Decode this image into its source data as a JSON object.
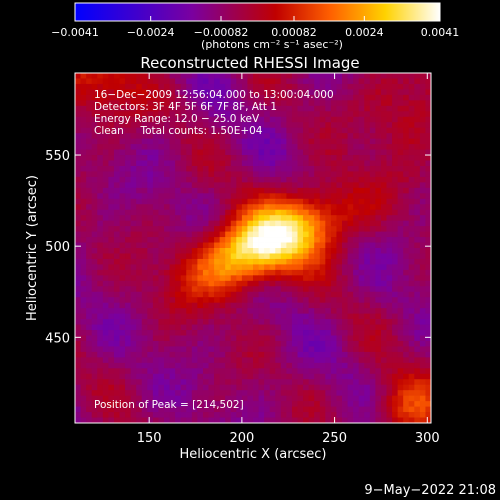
{
  "chart_data": {
    "type": "heatmap",
    "title": "Reconstructed RHESSI Image",
    "colorbar": {
      "min": -0.0041,
      "max": 0.0041,
      "tick_values": [
        -0.0041,
        -0.0024,
        -0.00082,
        0.00082,
        0.0024,
        0.0041
      ],
      "tick_labels": [
        "−0.0041",
        "−0.0024",
        "−0.00082",
        "0.00082",
        "0.0024",
        "0.0041"
      ],
      "unit_label": "(photons cm⁻² s⁻¹ asec⁻²)",
      "colors": [
        "#0000ff",
        "#7a00a0",
        "#c00000",
        "#ff6000",
        "#ffd200",
        "#ffffff"
      ]
    },
    "xlabel": "Heliocentric X (arcsec)",
    "ylabel": "Heliocentric Y (arcsec)",
    "xlim": [
      110,
      302
    ],
    "ylim": [
      403,
      595
    ],
    "x_ticks": [
      150,
      200,
      250,
      300
    ],
    "y_ticks": [
      450,
      500,
      550
    ],
    "peak": [
      214,
      502
    ],
    "annotations": [
      "16−Dec−2009 12:56:04.000 to 13:00:04.000",
      "Detectors: 3F 4F 5F 6F 7F 8F, Att 1",
      "Energy Range: 12.0 − 25.0 keV",
      "Clean     Total counts: 1.50E+04"
    ],
    "peak_label": "Position of Peak = [214,502]"
  },
  "footer": {
    "date": "9−May−2022 21:08"
  }
}
